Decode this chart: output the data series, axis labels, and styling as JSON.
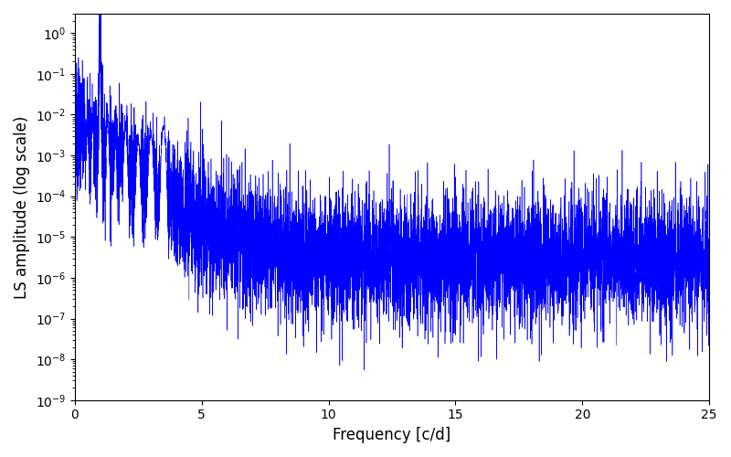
{
  "xlabel": "Frequency [c/d]",
  "ylabel": "LS amplitude (log scale)",
  "line_color": "#0000ff",
  "xlim": [
    0,
    25
  ],
  "ylim": [
    1e-09,
    3
  ],
  "freq_min": 0.0,
  "freq_max": 25.0,
  "num_points": 8000,
  "background_color": "#ffffff",
  "seed": 7,
  "peak_freq": 1.0,
  "peak_amplitude": 1.0,
  "noise_floor": 3e-06
}
